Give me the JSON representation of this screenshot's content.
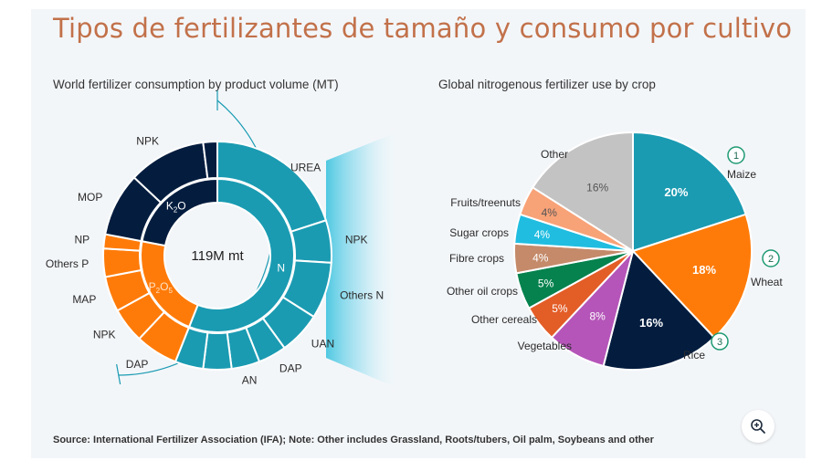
{
  "title": "Tipos de fertilizantes de tamaño y consumo por cultivo",
  "source": "Source: International Fertilizer Association (IFA); Note: Other includes Grassland, Roots/tubers, Oil palm, Soybeans and other",
  "colors": {
    "teal": "#1a9bb2",
    "orange": "#ff7b09",
    "navy": "#041d3f",
    "gray": "#c3c3c3",
    "peach": "#f8a277",
    "cyan": "#20bde0",
    "tan": "#c48a6a",
    "green": "#05824e",
    "red_orange": "#e35d27",
    "purple": "#b555b9",
    "accent_gradient": "#47c6e0"
  },
  "zoom_icon": "zoom-in-icon",
  "chart_data": [
    {
      "type": "sunburst",
      "title": "World fertilizer consumption by product volume (MT)",
      "center_label": "119M mt",
      "inner_ring": [
        {
          "label": "N",
          "value": 56
        },
        {
          "label": "P2O5",
          "value": 22
        },
        {
          "label": "K2O",
          "value": 22
        }
      ],
      "outer_ring": [
        {
          "label": "UREA",
          "parent": "N",
          "value": 20
        },
        {
          "label": "NPK",
          "parent": "N",
          "value": 6
        },
        {
          "label": "Others N",
          "parent": "N",
          "value": 8
        },
        {
          "label": "UAN",
          "parent": "N",
          "value": 6
        },
        {
          "label": "DAP",
          "parent": "N",
          "value": 4
        },
        {
          "label": "AN",
          "parent": "N",
          "value": 4
        },
        {
          "label": "",
          "parent": "N",
          "value": 4
        },
        {
          "label": "",
          "parent": "N",
          "value": 4
        },
        {
          "label": "DAP",
          "parent": "P2O5",
          "value": 6
        },
        {
          "label": "NPK",
          "parent": "P2O5",
          "value": 5
        },
        {
          "label": "MAP",
          "parent": "P2O5",
          "value": 5
        },
        {
          "label": "Others P",
          "parent": "P2O5",
          "value": 4
        },
        {
          "label": "NP",
          "parent": "P2O5",
          "value": 2
        },
        {
          "label": "MOP",
          "parent": "K2O",
          "value": 9
        },
        {
          "label": "NPK",
          "parent": "K2O",
          "value": 11
        },
        {
          "label": "",
          "parent": "K2O",
          "value": 2
        }
      ]
    },
    {
      "type": "pie",
      "title": "Global nitrogenous fertilizer use by crop",
      "slices": [
        {
          "label": "Maize",
          "value": 20,
          "display": "20%",
          "rank": "1",
          "color": "#1a9bb2"
        },
        {
          "label": "Wheat",
          "value": 18,
          "display": "18%",
          "rank": "2",
          "color": "#ff7b09"
        },
        {
          "label": "Rice",
          "value": 16,
          "display": "16%",
          "rank": "3",
          "color": "#041d3f"
        },
        {
          "label": "Vegetables",
          "value": 8,
          "display": "8%",
          "color": "#b555b9"
        },
        {
          "label": "Other cereals",
          "value": 5,
          "display": "5%",
          "color": "#e35d27"
        },
        {
          "label": "Other oil crops",
          "value": 5,
          "display": "5%",
          "color": "#05824e"
        },
        {
          "label": "Fibre crops",
          "value": 4,
          "display": "4%",
          "color": "#c48a6a"
        },
        {
          "label": "Sugar crops",
          "value": 4,
          "display": "4%",
          "color": "#20bde0"
        },
        {
          "label": "Fruits/treenuts",
          "value": 4,
          "display": "4%",
          "color": "#f8a277"
        },
        {
          "label": "Other",
          "value": 16,
          "display": "16%",
          "color": "#c3c3c3"
        }
      ]
    }
  ]
}
